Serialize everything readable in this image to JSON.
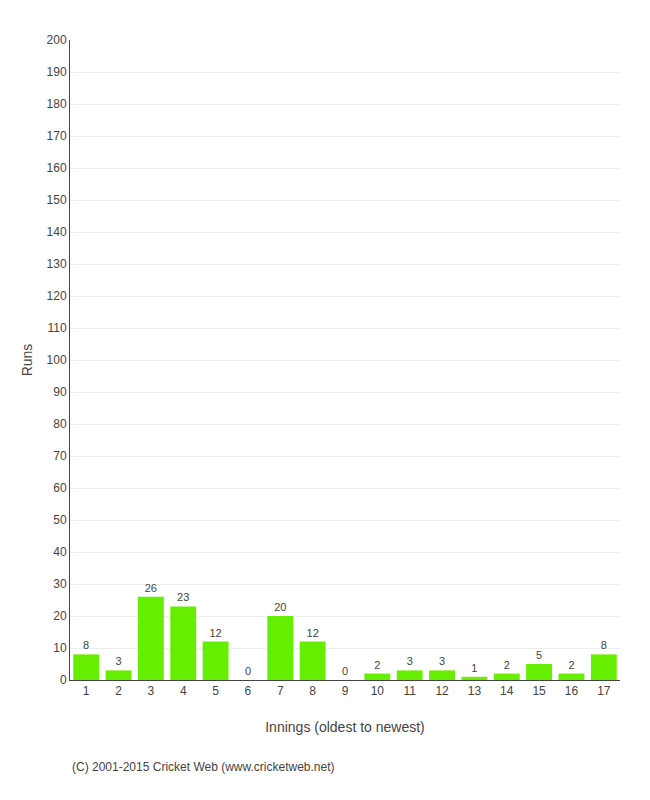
{
  "chart_data": {
    "type": "bar",
    "categories": [
      "1",
      "2",
      "3",
      "4",
      "5",
      "6",
      "7",
      "8",
      "9",
      "10",
      "11",
      "12",
      "13",
      "14",
      "15",
      "16",
      "17"
    ],
    "values": [
      8,
      3,
      26,
      23,
      12,
      0,
      20,
      12,
      0,
      2,
      3,
      3,
      1,
      2,
      5,
      2,
      8
    ],
    "color": "#66ee00",
    "xlabel": "Innings (oldest to newest)",
    "ylabel": "Runs",
    "ylim": [
      0,
      200
    ],
    "yticks": [
      0,
      10,
      20,
      30,
      40,
      50,
      60,
      70,
      80,
      90,
      100,
      110,
      120,
      130,
      140,
      150,
      160,
      170,
      180,
      190,
      200
    ],
    "grid": true,
    "data_labels": true,
    "annotations": [
      "(C) 2001-2015 Cricket Web (www.cricketweb.net)"
    ]
  }
}
